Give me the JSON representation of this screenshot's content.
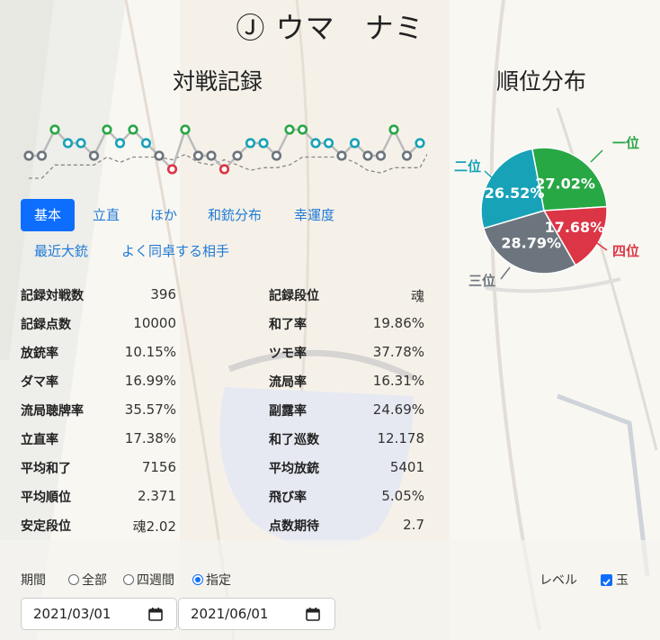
{
  "player": {
    "title": "Ⓙ ウマ　ナミ"
  },
  "sections": {
    "record_title": "対戦記録",
    "rank_title": "順位分布"
  },
  "tabs": [
    {
      "label": "基本",
      "active": true
    },
    {
      "label": "立直",
      "active": false
    },
    {
      "label": "ほか",
      "active": false
    },
    {
      "label": "和銃分布",
      "active": false
    },
    {
      "label": "幸運度",
      "active": false
    },
    {
      "label": "最近大銃",
      "active": false
    },
    {
      "label": "よく同卓する相手",
      "active": false
    }
  ],
  "stats_left": [
    {
      "label": "記録対戦数",
      "value": "396"
    },
    {
      "label": "記録点数",
      "value": "10000"
    },
    {
      "label": "放銃率",
      "value": "10.15%"
    },
    {
      "label": "ダマ率",
      "value": "16.99%"
    },
    {
      "label": "流局聴牌率",
      "value": "35.57%"
    },
    {
      "label": "立直率",
      "value": "17.38%"
    },
    {
      "label": "平均和了",
      "value": "7156"
    },
    {
      "label": "平均順位",
      "value": "2.371"
    },
    {
      "label": "安定段位",
      "value": "魂2.02"
    }
  ],
  "stats_right": [
    {
      "label": "記録段位",
      "value": "魂"
    },
    {
      "label": "和了率",
      "value": "19.86%"
    },
    {
      "label": "ツモ率",
      "value": "37.78%"
    },
    {
      "label": "流局率",
      "value": "16.31%"
    },
    {
      "label": "副露率",
      "value": "24.69%"
    },
    {
      "label": "和了巡数",
      "value": "12.178"
    },
    {
      "label": "平均放銃",
      "value": "5401"
    },
    {
      "label": "飛び率",
      "value": "5.05%"
    },
    {
      "label": "点数期待",
      "value": "2.7"
    }
  ],
  "period": {
    "label": "期間",
    "options": [
      {
        "label": "全部",
        "selected": false
      },
      {
        "label": "四週間",
        "selected": false
      },
      {
        "label": "指定",
        "selected": true
      }
    ],
    "start_date": "2021/03/01",
    "end_date": "2021/06/01"
  },
  "level": {
    "label": "レベル",
    "checkbox_label": "玉",
    "checked": true
  },
  "chart_data": [
    {
      "type": "line",
      "description": "recent game placements (1 = top), oldest to newest, with dashed moving average",
      "placements": [
        4,
        4,
        1,
        3,
        3,
        4,
        1,
        3,
        1,
        3,
        4,
        2,
        1,
        4,
        4,
        2,
        4,
        3,
        3,
        4,
        1,
        1,
        3,
        3,
        4,
        3,
        4,
        4,
        1,
        4,
        3
      ],
      "colors": {
        "1": "#28a745",
        "2": "#dc3545",
        "3": "#17a2b8",
        "4": "#6c757d"
      },
      "average_line": "dashed"
    },
    {
      "type": "pie",
      "slices": [
        {
          "name": "一位",
          "value": 27.02,
          "label": "27.02%",
          "color": "#28a745"
        },
        {
          "name": "四位",
          "value": 17.68,
          "label": "17.68%",
          "color": "#dc3545"
        },
        {
          "name": "三位",
          "value": 28.79,
          "label": "28.79%",
          "color": "#6c757d"
        },
        {
          "name": "二位",
          "value": 26.52,
          "label": "26.52%",
          "color": "#17a2b8"
        }
      ]
    }
  ]
}
